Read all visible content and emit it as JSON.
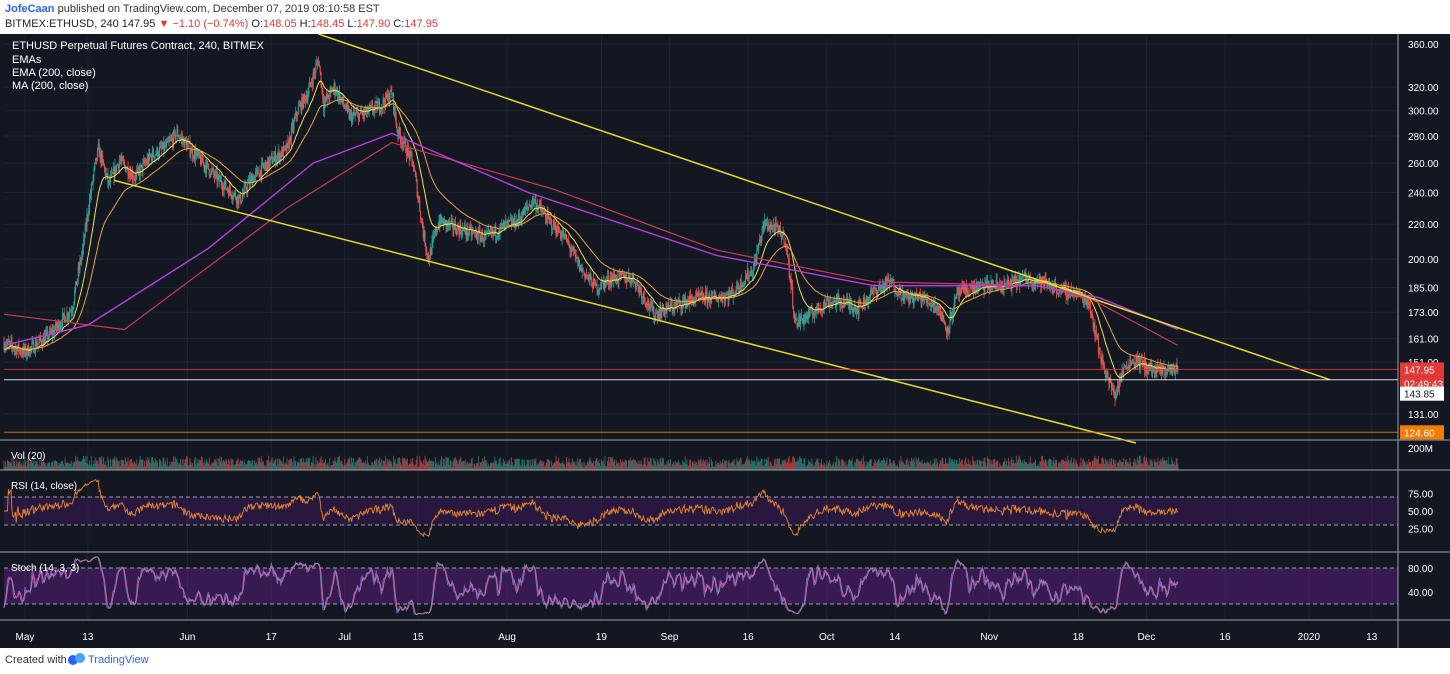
{
  "header": {
    "author": "JofeCaan",
    "published_text": "published on TradingView.com, December 07, 2019 08:10:58 EST",
    "symbol_line": "BITMEX:ETHUSD, 240",
    "last": "147.95",
    "change": "▼ −1.10 (−0.74%)",
    "o_label": "O:",
    "o_val": "148.05",
    "h_label": "H:",
    "h_val": "148.45",
    "l_label": "L:",
    "l_val": "147.90",
    "c_label": "C:",
    "c_val": "147.95"
  },
  "legend": {
    "title": "ETHUSD Perpetual Futures Contract, 240, BITMEX",
    "line1": "EMAs",
    "line2": "EMA (200, close)",
    "line3": "MA (200, close)"
  },
  "panes": {
    "vol": {
      "label": "Vol (20)",
      "axis_label": "200M"
    },
    "rsi": {
      "label": "RSI (14, close)",
      "ticks": [
        "75.00",
        "50.00",
        "25.00"
      ]
    },
    "stoch": {
      "label": "Stoch (14, 3, 3)",
      "ticks": [
        "80.00",
        "40.00"
      ]
    }
  },
  "price_axis": {
    "ticks": [
      "360.00",
      "320.00",
      "300.00",
      "280.00",
      "260.00",
      "240.00",
      "220.00",
      "200.00",
      "185.00",
      "173.00",
      "161.00",
      "151.00",
      "131.00"
    ],
    "badges": [
      {
        "text": "147.95",
        "color": "#e53935"
      },
      {
        "text": "02:49:43",
        "color": "#e53935"
      },
      {
        "text": "143.85",
        "color": "#ffffff"
      },
      {
        "text": "124.60",
        "color": "#f57c00"
      }
    ]
  },
  "time_axis": {
    "labels": [
      "May",
      "13",
      "Jun",
      "17",
      "Jul",
      "15",
      "Aug",
      "19",
      "Sep",
      "16",
      "Oct",
      "14",
      "Nov",
      "18",
      "Dec",
      "16",
      "2020",
      "13"
    ]
  },
  "footer": {
    "created_with": "Created with",
    "brand": "TradingView"
  },
  "colors": {
    "background": "#131722",
    "candle_up": "#26a69a",
    "candle_down": "#ef5350",
    "ema_yellow": "#f5e04a",
    "ema_orange": "#e6a23a",
    "ema_red": "#c93a5a",
    "ma_purple": "#b63ee0",
    "trendline": "#e8d82a",
    "level_red": "#e53935",
    "level_orange": "#f57c00",
    "rsi_line": "#e8862e",
    "stoch_k": "#6a7fd6",
    "stoch_d": "#e86aa0"
  },
  "chart_data": {
    "type": "candlestick",
    "title": "ETHUSD Perpetual Futures Contract, 240, BITMEX",
    "x_range": [
      "2019-04-27",
      "2020-01-18"
    ],
    "y_scale": "log",
    "y_range": [
      122,
      370
    ],
    "price_path": [
      [
        "2019-04-27",
        159
      ],
      [
        "2019-05-01",
        155
      ],
      [
        "2019-05-06",
        163
      ],
      [
        "2019-05-10",
        175
      ],
      [
        "2019-05-12",
        205
      ],
      [
        "2019-05-14",
        250
      ],
      [
        "2019-05-15",
        270
      ],
      [
        "2019-05-17",
        245
      ],
      [
        "2019-05-19",
        262
      ],
      [
        "2019-05-22",
        250
      ],
      [
        "2019-05-25",
        265
      ],
      [
        "2019-05-28",
        272
      ],
      [
        "2019-05-30",
        282
      ],
      [
        "2019-06-02",
        268
      ],
      [
        "2019-06-04",
        260
      ],
      [
        "2019-06-07",
        248
      ],
      [
        "2019-06-11",
        235
      ],
      [
        "2019-06-13",
        248
      ],
      [
        "2019-06-17",
        262
      ],
      [
        "2019-06-20",
        270
      ],
      [
        "2019-06-22",
        300
      ],
      [
        "2019-06-24",
        315
      ],
      [
        "2019-06-26",
        345
      ],
      [
        "2019-06-27",
        305
      ],
      [
        "2019-06-29",
        320
      ],
      [
        "2019-07-02",
        295
      ],
      [
        "2019-07-05",
        298
      ],
      [
        "2019-07-08",
        305
      ],
      [
        "2019-07-10",
        315
      ],
      [
        "2019-07-11",
        285
      ],
      [
        "2019-07-14",
        260
      ],
      [
        "2019-07-16",
        215
      ],
      [
        "2019-07-17",
        200
      ],
      [
        "2019-07-19",
        222
      ],
      [
        "2019-07-22",
        218
      ],
      [
        "2019-07-25",
        215
      ],
      [
        "2019-07-28",
        212
      ],
      [
        "2019-07-31",
        218
      ],
      [
        "2019-08-03",
        222
      ],
      [
        "2019-08-06",
        235
      ],
      [
        "2019-08-09",
        222
      ],
      [
        "2019-08-12",
        212
      ],
      [
        "2019-08-15",
        195
      ],
      [
        "2019-08-18",
        185
      ],
      [
        "2019-08-21",
        190
      ],
      [
        "2019-08-25",
        190
      ],
      [
        "2019-08-29",
        172
      ],
      [
        "2019-09-01",
        175
      ],
      [
        "2019-09-04",
        178
      ],
      [
        "2019-09-07",
        180
      ],
      [
        "2019-09-10",
        180
      ],
      [
        "2019-09-13",
        182
      ],
      [
        "2019-09-17",
        195
      ],
      [
        "2019-09-19",
        220
      ],
      [
        "2019-09-21",
        218
      ],
      [
        "2019-09-23",
        212
      ],
      [
        "2019-09-25",
        168
      ],
      [
        "2019-09-28",
        172
      ],
      [
        "2019-10-01",
        178
      ],
      [
        "2019-10-04",
        178
      ],
      [
        "2019-10-07",
        175
      ],
      [
        "2019-10-10",
        183
      ],
      [
        "2019-10-13",
        188
      ],
      [
        "2019-10-16",
        180
      ],
      [
        "2019-10-19",
        180
      ],
      [
        "2019-10-22",
        176
      ],
      [
        "2019-10-24",
        165
      ],
      [
        "2019-10-26",
        182
      ],
      [
        "2019-10-29",
        185
      ],
      [
        "2019-11-01",
        186
      ],
      [
        "2019-11-04",
        186
      ],
      [
        "2019-11-08",
        190
      ],
      [
        "2019-11-12",
        187
      ],
      [
        "2019-11-15",
        183
      ],
      [
        "2019-11-17",
        183
      ],
      [
        "2019-11-20",
        178
      ],
      [
        "2019-11-22",
        155
      ],
      [
        "2019-11-24",
        142
      ],
      [
        "2019-11-25",
        138
      ],
      [
        "2019-11-27",
        150
      ],
      [
        "2019-11-29",
        152
      ],
      [
        "2019-12-01",
        149
      ],
      [
        "2019-12-03",
        147
      ],
      [
        "2019-12-05",
        148
      ],
      [
        "2019-12-07",
        147.95
      ]
    ],
    "indicators": {
      "ema_200": [
        [
          "2019-04-27",
          172
        ],
        [
          "2019-05-20",
          165
        ],
        [
          "2019-06-20",
          230
        ],
        [
          "2019-07-10",
          275
        ],
        [
          "2019-08-10",
          242
        ],
        [
          "2019-09-10",
          205
        ],
        [
          "2019-10-10",
          188
        ],
        [
          "2019-11-10",
          186
        ],
        [
          "2019-11-20",
          180
        ],
        [
          "2019-12-07",
          158
        ]
      ],
      "ma_200": [
        [
          "2019-04-27",
          158
        ],
        [
          "2019-05-13",
          167
        ],
        [
          "2019-06-05",
          206
        ],
        [
          "2019-06-25",
          260
        ],
        [
          "2019-07-10",
          282
        ],
        [
          "2019-08-05",
          240
        ],
        [
          "2019-09-10",
          202
        ],
        [
          "2019-10-10",
          186
        ],
        [
          "2019-11-10",
          186
        ],
        [
          "2019-11-22",
          180
        ],
        [
          "2019-12-07",
          165
        ]
      ]
    },
    "trendlines": [
      {
        "from": [
          "2019-06-26",
          370
        ],
        "to": [
          "2020-01-05",
          143.85
        ]
      },
      {
        "from": [
          "2019-05-18",
          248
        ],
        "to": [
          "2019-11-29",
          121
        ]
      }
    ],
    "horizontal_levels": [
      147.95,
      143.85,
      124.6
    ],
    "rsi_range": [
      0,
      100
    ],
    "rsi_levels": [
      70,
      30
    ],
    "stoch_levels": [
      80,
      20
    ]
  }
}
